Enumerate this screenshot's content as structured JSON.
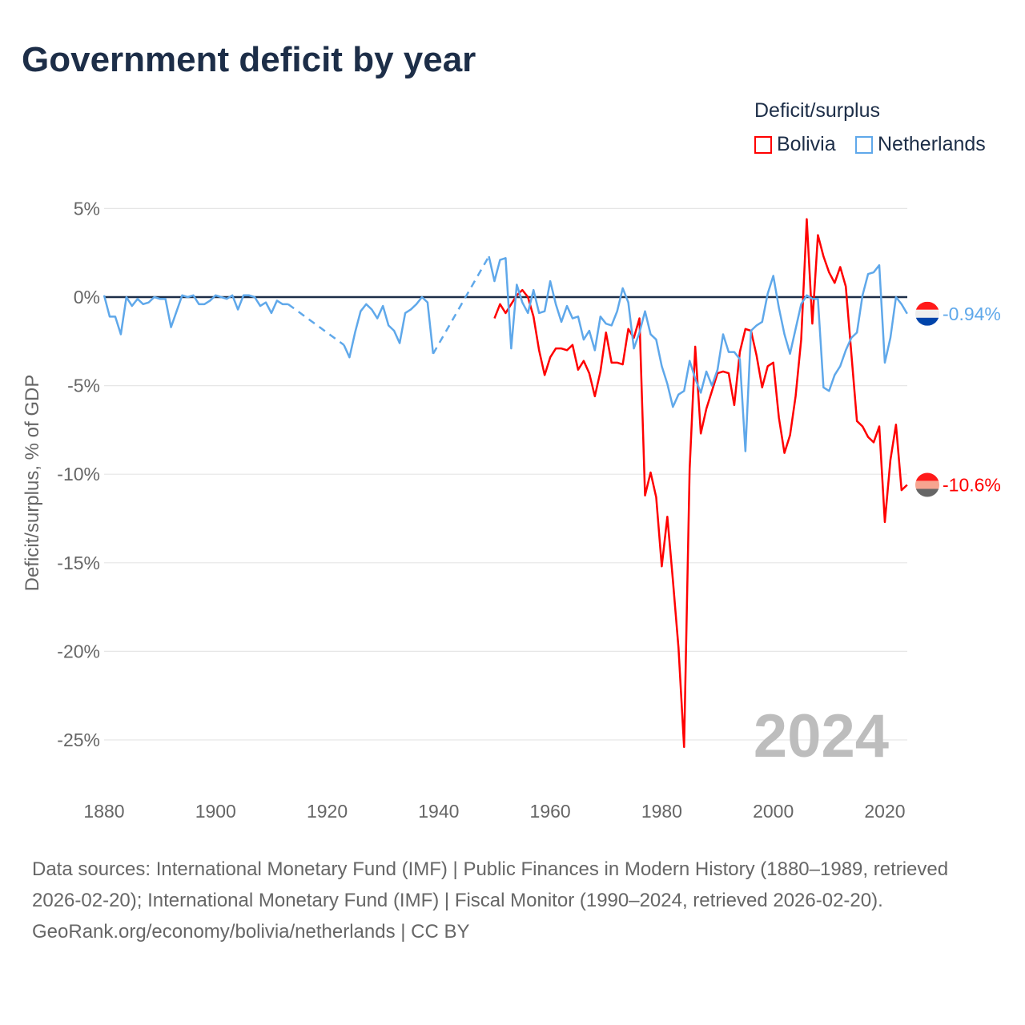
{
  "title": "Government deficit by year",
  "legend": {
    "title": "Deficit/surplus",
    "items": [
      "Bolivia",
      "Netherlands"
    ]
  },
  "year_watermark": "2024",
  "footer": {
    "sources": "Data sources: International Monetary Fund (IMF) | Public Finances in Modern History (1880–1989, retrieved 2026-02-20); International Monetary Fund (IMF) | Fiscal Monitor (1990–2024, retrieved 2026-02-20).",
    "credit": "GeoRank.org/economy/bolivia/netherlands | CC BY"
  },
  "chart_data": {
    "type": "line",
    "title": "Government deficit by year",
    "ylabel": "Deficit/surplus, % of GDP",
    "xlabel": "",
    "xlim": [
      1880,
      2024
    ],
    "ylim": [
      -27,
      5
    ],
    "x_ticks": [
      "1880",
      "1900",
      "1920",
      "1940",
      "1960",
      "1980",
      "2000",
      "2020"
    ],
    "y_ticks": [
      {
        "v": 5,
        "label": "5%"
      },
      {
        "v": 0,
        "label": "0%"
      },
      {
        "v": -5,
        "label": "-5%"
      },
      {
        "v": -10,
        "label": "-10%"
      },
      {
        "v": -15,
        "label": "-15%"
      },
      {
        "v": -20,
        "label": "-20%"
      },
      {
        "v": -25,
        "label": "-25%"
      }
    ],
    "grid": true,
    "legend_position": "top-right",
    "series": [
      {
        "name": "Bolivia",
        "color": "#ff0000",
        "end_label": "-10.6%",
        "start_year": 1950,
        "values": [
          -1.2,
          -0.4,
          -0.9,
          -0.4,
          0.1,
          0.4,
          0,
          -1.1,
          -3.0,
          -4.4,
          -3.4,
          -2.9,
          -2.9,
          -3.0,
          -2.7,
          -4.1,
          -3.6,
          -4.3,
          -5.6,
          -4.2,
          -2.0,
          -3.7,
          -3.7,
          -3.8,
          -1.8,
          -2.3,
          -1.2,
          -11.2,
          -9.9,
          -11.3,
          -15.2,
          -12.4,
          -16.0,
          -19.8,
          -25.4,
          -9.7,
          -2.8,
          -7.7,
          -6.3,
          -5.3,
          -4.3,
          -4.2,
          -4.3,
          -6.1,
          -3.1,
          -1.8,
          -1.9,
          -3.3,
          -5.1,
          -3.9,
          -3.7,
          -6.8,
          -8.8,
          -7.8,
          -5.6,
          -2.4,
          4.4,
          -1.5,
          3.5,
          2.3,
          1.4,
          0.8,
          1.7,
          0.6,
          -3.2,
          -7.0,
          -7.3,
          -7.9,
          -8.2,
          -7.3,
          -12.7,
          -9.2,
          -7.2,
          -10.9,
          -10.6
        ]
      },
      {
        "name": "Netherlands",
        "color": "#5fa8ea",
        "end_label": "-0.94%",
        "start_year": 1880,
        "values": [
          0.1,
          -1.1,
          -1.1,
          -2.1,
          0,
          -0.5,
          -0.1,
          -0.4,
          -0.3,
          0,
          -0.1,
          -0.1,
          -1.7,
          -0.8,
          0.1,
          0,
          0.1,
          -0.4,
          -0.4,
          -0.2,
          0.1,
          0,
          -0.1,
          0.1,
          -0.7,
          0.1,
          0.1,
          0,
          -0.5,
          -0.3,
          -0.9,
          -0.2,
          -0.4,
          -0.4,
          null,
          null,
          null,
          null,
          null,
          null,
          null,
          null,
          null,
          -2.7,
          -3.4,
          -2.0,
          -0.8,
          -0.4,
          -0.7,
          -1.2,
          -0.5,
          -1.6,
          -1.9,
          -2.6,
          -0.9,
          -0.7,
          -0.4,
          0,
          -0.3,
          -3.2,
          null,
          null,
          null,
          null,
          null,
          null,
          null,
          null,
          null,
          2.3,
          0.9,
          2.1,
          2.2,
          -2.9,
          0.7,
          -0.3,
          -0.9,
          0.4,
          -0.9,
          -0.8,
          0.9,
          -0.4,
          -1.4,
          -0.5,
          -1.2,
          -1.1,
          -2.4,
          -1.9,
          -3.0,
          -1.1,
          -1.5,
          -1.6,
          -0.8,
          0.5,
          -0.3,
          -2.9,
          -2.0,
          -0.8,
          -2.1,
          -2.4,
          -3.9,
          -4.9,
          -6.2,
          -5.5,
          -5.3,
          -3.6,
          -4.6,
          -5.4,
          -4.2,
          -5.0,
          -4.1,
          -2.1,
          -3.1,
          -3.1,
          -3.5,
          -8.7,
          -1.9,
          -1.6,
          -1.4,
          0.2,
          1.2,
          -0.6,
          -2.1,
          -3.2,
          -1.8,
          -0.4,
          0.1,
          -0.1,
          -0.1,
          -5.1,
          -5.3,
          -4.4,
          -3.9,
          -3.0,
          -2.3,
          -2.0,
          0.1,
          1.3,
          1.4,
          1.8,
          -3.7,
          -2.3,
          0,
          -0.4,
          -0.94
        ]
      }
    ]
  }
}
